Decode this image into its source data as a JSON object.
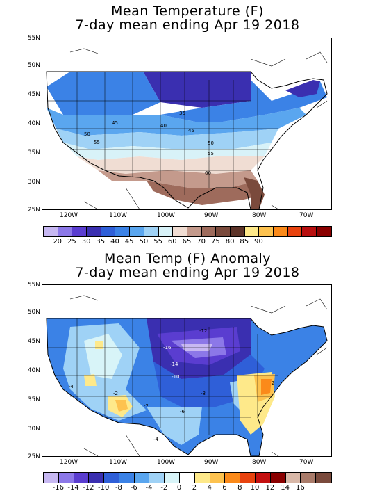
{
  "panel1": {
    "title_line1": "Mean Temperature (F)",
    "title_line2": "7-day mean ending Apr 19 2018",
    "lat_labels": [
      "55N",
      "50N",
      "45N",
      "40N",
      "35N",
      "30N",
      "25N"
    ],
    "lon_labels": [
      "120W",
      "110W",
      "100W",
      "90W",
      "80W",
      "70W"
    ],
    "contour_labels": [
      "35",
      "40",
      "45",
      "45",
      "50",
      "50",
      "55",
      "55",
      "60",
      "40"
    ],
    "colorbar_ticks": [
      "20",
      "25",
      "30",
      "35",
      "40",
      "45",
      "50",
      "55",
      "60",
      "65",
      "70",
      "75",
      "80",
      "85",
      "90"
    ],
    "colorbar_colors": [
      "#c7b8f2",
      "#8c78e8",
      "#5a3dd0",
      "#3a2fb0",
      "#2f5fd8",
      "#3b82e6",
      "#5aa6ef",
      "#9fd2f6",
      "#d8f2f8",
      "#f0ddd3",
      "#c49a8c",
      "#9e6b5c",
      "#7a4a3c",
      "#5c3328",
      "#fee98a",
      "#fdc24f",
      "#fb8a1a",
      "#e8430f",
      "#b80f0f",
      "#8a0000"
    ]
  },
  "panel2": {
    "title_line1": "Mean Temp (F) Anomaly",
    "title_line2": "7-day mean ending Apr 19 2018",
    "lat_labels": [
      "55N",
      "50N",
      "45N",
      "40N",
      "35N",
      "30N",
      "25N"
    ],
    "lon_labels": [
      "120W",
      "110W",
      "100W",
      "90W",
      "80W",
      "70W"
    ],
    "contour_labels": [
      "-12",
      "-16",
      "-14",
      "-10",
      "-8",
      "-6",
      "-4",
      "-2",
      "-2",
      "2",
      "-4"
    ],
    "colorbar_ticks": [
      "-16",
      "-14",
      "-12",
      "-10",
      "-8",
      "-6",
      "-4",
      "-2",
      "0",
      "2",
      "4",
      "6",
      "8",
      "10",
      "12",
      "14",
      "16"
    ],
    "colorbar_colors": [
      "#c7b8f2",
      "#8c78e8",
      "#5a3dd0",
      "#3a2fb0",
      "#2f5fd8",
      "#3b82e6",
      "#5aa6ef",
      "#9fd2f6",
      "#d8f4f8",
      "#ffffff",
      "#fee98a",
      "#fdc24f",
      "#fb8a1a",
      "#e8430f",
      "#c41010",
      "#8a0000",
      "#d9b8a8",
      "#a97b6a",
      "#7a4a3c"
    ]
  }
}
